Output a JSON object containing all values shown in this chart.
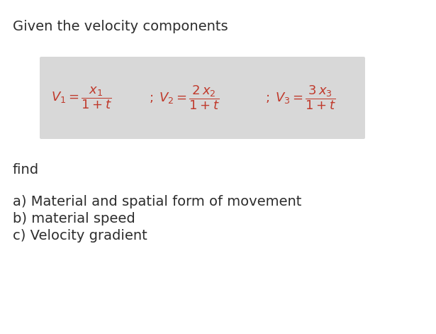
{
  "bg_color": "#ffffff",
  "title_text": "Given the velocity components",
  "title_fontsize": 14,
  "title_color": "#2d2d2d",
  "box_color": "#dcdcdc",
  "formula_color": "#c0392b",
  "find_text": "find",
  "find_fontsize": 14,
  "find_color": "#2d2d2d",
  "items": [
    "a) Material and spatial form of movement",
    "b) material speed",
    "c) Velocity gradient"
  ],
  "items_fontsize": 14,
  "items_color": "#2d2d2d"
}
